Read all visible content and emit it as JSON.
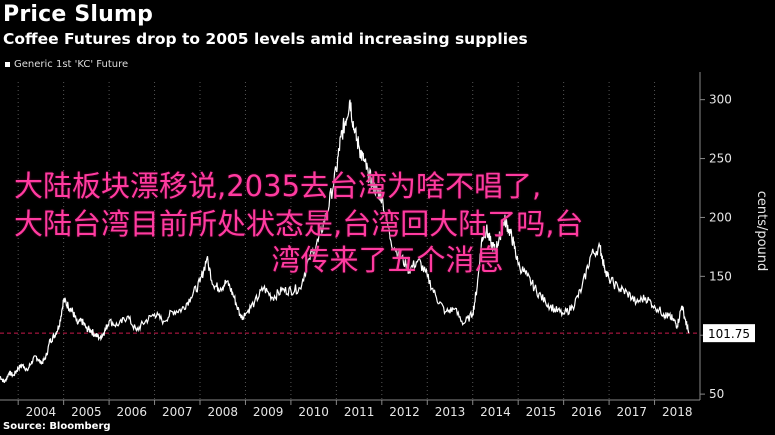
{
  "title": "Price Slump",
  "subtitle": "Coffee Futures drop to 2005 levels amid increasing supplies",
  "source": "Source: Bloomberg",
  "overlay_text": {
    "line1": "大陆板块漂移说,2035去台湾为啥不唱了,",
    "line2": "大陆台湾目前所处状态是,台湾回大陆了吗,台",
    "line3": "湾传来了五个消息"
  },
  "colors": {
    "background": "#000000",
    "line": "#ffffff",
    "reference_line": "#c8194b",
    "overlay": "#ff3ba0"
  },
  "chart_data": {
    "type": "line",
    "title": "Price Slump",
    "subtitle": "Coffee Futures drop to 2005 levels amid increasing supplies",
    "ylabel": "cents/pound",
    "xlabel": "",
    "legend_position": "top-left",
    "grid": "vertical dashed at year boundaries",
    "xlim": [
      2003.6,
      2019.0
    ],
    "ylim": [
      45,
      315
    ],
    "yticks": [
      50,
      100,
      150,
      200,
      250,
      300
    ],
    "xticks": [
      "2004",
      "2005",
      "2006",
      "2007",
      "2008",
      "2009",
      "2010",
      "2011",
      "2012",
      "2013",
      "2014",
      "2015",
      "2016",
      "2017",
      "2018"
    ],
    "reference_line": {
      "value": 101.75,
      "style": "dashed"
    },
    "last_value_label": "101.75",
    "series": [
      {
        "name": "Generic 1st 'KC' Future",
        "x": [
          2003.6,
          2003.7,
          2003.8,
          2003.9,
          2004.0,
          2004.1,
          2004.2,
          2004.3,
          2004.4,
          2004.5,
          2004.6,
          2004.7,
          2004.8,
          2004.9,
          2005.0,
          2005.1,
          2005.2,
          2005.3,
          2005.4,
          2005.5,
          2005.6,
          2005.7,
          2005.8,
          2005.9,
          2006.0,
          2006.2,
          2006.4,
          2006.6,
          2006.8,
          2007.0,
          2007.2,
          2007.4,
          2007.6,
          2007.8,
          2008.0,
          2008.15,
          2008.3,
          2008.45,
          2008.6,
          2008.75,
          2008.9,
          2009.0,
          2009.2,
          2009.4,
          2009.6,
          2009.8,
          2010.0,
          2010.2,
          2010.4,
          2010.6,
          2010.8,
          2011.0,
          2011.1,
          2011.2,
          2011.3,
          2011.4,
          2011.5,
          2011.6,
          2011.7,
          2011.8,
          2011.9,
          2012.0,
          2012.2,
          2012.4,
          2012.6,
          2012.8,
          2013.0,
          2013.2,
          2013.4,
          2013.6,
          2013.8,
          2014.0,
          2014.1,
          2014.2,
          2014.3,
          2014.4,
          2014.5,
          2014.6,
          2014.7,
          2014.8,
          2014.9,
          2015.0,
          2015.2,
          2015.4,
          2015.6,
          2015.8,
          2016.0,
          2016.2,
          2016.4,
          2016.6,
          2016.8,
          2016.9,
          2017.0,
          2017.2,
          2017.4,
          2017.6,
          2017.8,
          2018.0,
          2018.2,
          2018.3,
          2018.4,
          2018.5,
          2018.6,
          2018.7,
          2018.75
        ],
        "values": [
          65,
          60,
          68,
          66,
          72,
          75,
          70,
          78,
          82,
          76,
          80,
          95,
          100,
          108,
          130,
          125,
          120,
          110,
          112,
          106,
          104,
          100,
          98,
          103,
          112,
          108,
          116,
          104,
          112,
          118,
          112,
          120,
          122,
          132,
          145,
          165,
          142,
          140,
          146,
          132,
          115,
          118,
          128,
          140,
          132,
          138,
          138,
          140,
          165,
          180,
          205,
          240,
          268,
          282,
          300,
          272,
          260,
          248,
          238,
          228,
          222,
          218,
          180,
          168,
          155,
          164,
          150,
          132,
          120,
          122,
          110,
          118,
          142,
          182,
          190,
          178,
          172,
          185,
          198,
          190,
          178,
          160,
          150,
          138,
          128,
          122,
          118,
          124,
          140,
          168,
          175,
          158,
          148,
          140,
          136,
          128,
          132,
          125,
          118,
          116,
          114,
          108,
          125,
          110,
          101.75
        ]
      }
    ]
  }
}
